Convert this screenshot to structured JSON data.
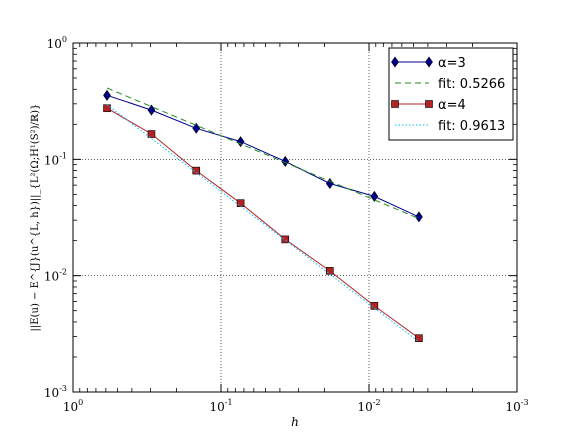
{
  "chart_data": {
    "type": "line",
    "xscale": "log",
    "yscale": "log",
    "xaxis_direction": "decreasing",
    "xlim": [
      1.0,
      0.001
    ],
    "ylim": [
      0.001,
      1.0
    ],
    "xlabel": "h",
    "ylabel": "||E(u) − E^{J}(u^{L, h})||_{L²(Ω;H¹(S²)/ℝ)}",
    "grid": true,
    "legend_position": "top-right",
    "xticks": [
      {
        "base": "10",
        "exp": "0",
        "value": 1.0
      },
      {
        "base": "10",
        "exp": "-1",
        "value": 0.1
      },
      {
        "base": "10",
        "exp": "-2",
        "value": 0.01
      },
      {
        "base": "10",
        "exp": "-3",
        "value": 0.001
      }
    ],
    "yticks": [
      {
        "base": "10",
        "exp": "-3",
        "value": 0.001
      },
      {
        "base": "10",
        "exp": "-2",
        "value": 0.01
      },
      {
        "base": "10",
        "exp": "-1",
        "value": 0.1
      },
      {
        "base": "10",
        "exp": "0",
        "value": 1.0
      }
    ],
    "series": [
      {
        "name": "α=3",
        "style": "solid",
        "marker": "diamond",
        "color": "#00008b",
        "x": [
          0.589,
          0.295,
          0.147,
          0.0737,
          0.0368,
          0.0184,
          0.0092,
          0.0046
        ],
        "y": [
          0.355,
          0.265,
          0.185,
          0.142,
          0.096,
          0.062,
          0.048,
          0.032
        ]
      },
      {
        "name": "fit: 0.5266",
        "style": "dashed",
        "marker": "none",
        "color": "#228b22",
        "x": [
          0.589,
          0.0046
        ],
        "y": [
          0.41,
          0.031
        ]
      },
      {
        "name": "α=4",
        "style": "solid",
        "marker": "square",
        "color": "#b22222",
        "x": [
          0.589,
          0.295,
          0.147,
          0.0737,
          0.0368,
          0.0184,
          0.0092,
          0.0046
        ],
        "y": [
          0.275,
          0.165,
          0.08,
          0.042,
          0.0205,
          0.011,
          0.0055,
          0.0029
        ]
      },
      {
        "name": "fit: 0.9613",
        "style": "dotted",
        "marker": "none",
        "color": "#00bfff",
        "x": [
          0.589,
          0.0046
        ],
        "y": [
          0.295,
          0.0027
        ]
      }
    ]
  }
}
